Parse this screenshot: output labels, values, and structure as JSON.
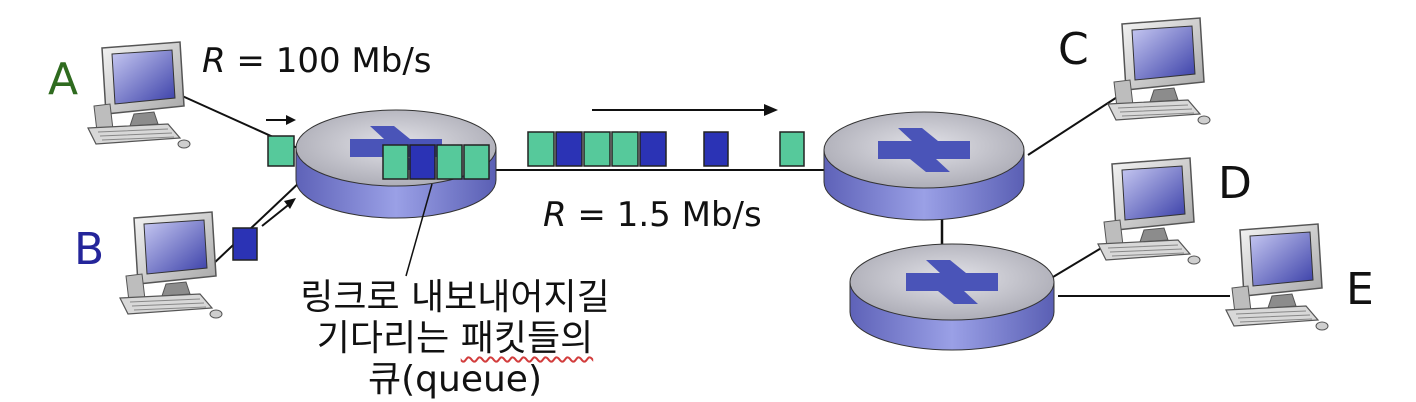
{
  "hosts": {
    "a": {
      "label": "A",
      "color": "#2f6b1f"
    },
    "b": {
      "label": "B",
      "color": "#24259a"
    },
    "c": {
      "label": "C"
    },
    "d": {
      "label": "D"
    },
    "e": {
      "label": "E"
    }
  },
  "links": {
    "access_rate": {
      "var": "R",
      "value": " = 100 Mb/s"
    },
    "bottleneck_rate": {
      "var": "R",
      "value": " = 1.5 Mb/s"
    }
  },
  "queue_caption": {
    "line1": "링크로 내보내어지길",
    "line2": "기다리는 패킷들의",
    "line3_highlighted": "큐",
    "line3_rest": "(queue)"
  },
  "colors": {
    "packet_a": "#56c99b",
    "packet_b": "#2b33b5",
    "router_top": "#c4c4cc",
    "router_side": "#7a7fcd",
    "router_x": "#4a54b8"
  }
}
